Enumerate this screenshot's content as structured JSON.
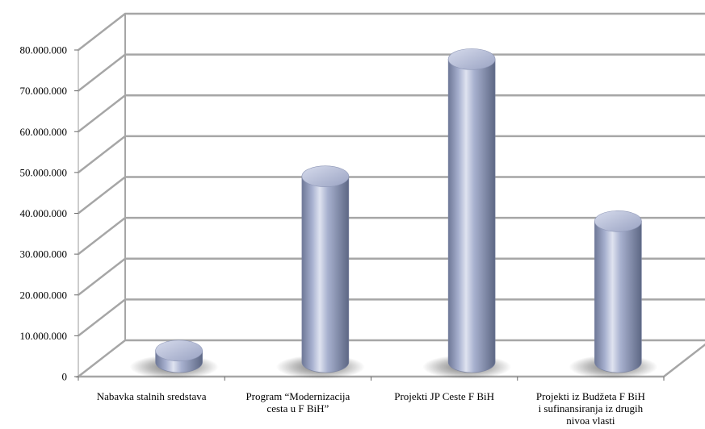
{
  "chart_data": {
    "type": "bar",
    "style": "3d-cylinder",
    "categories": [
      "Nabavka stalnih sredstava",
      "Program “Modernizacija cesta u F BiH”",
      "Projekti JP Ceste F BiH",
      "Projekti iz Budžeta F BiH i sufinansiranja iz drugih nivoa vlasti"
    ],
    "values": [
      2800000,
      45500000,
      74200000,
      34500000
    ],
    "ylim": [
      0,
      80000000
    ],
    "yticks": [
      "0",
      "10.000.000",
      "20.000.000",
      "30.000.000",
      "40.000.000",
      "50.000.000",
      "60.000.000",
      "70.000.000",
      "80.000.000"
    ],
    "grid": true,
    "legend": false,
    "colors": {
      "bar": "#9aa4c6",
      "bar_top": "#b4bcd8",
      "grid": "#a6a6a6"
    }
  }
}
